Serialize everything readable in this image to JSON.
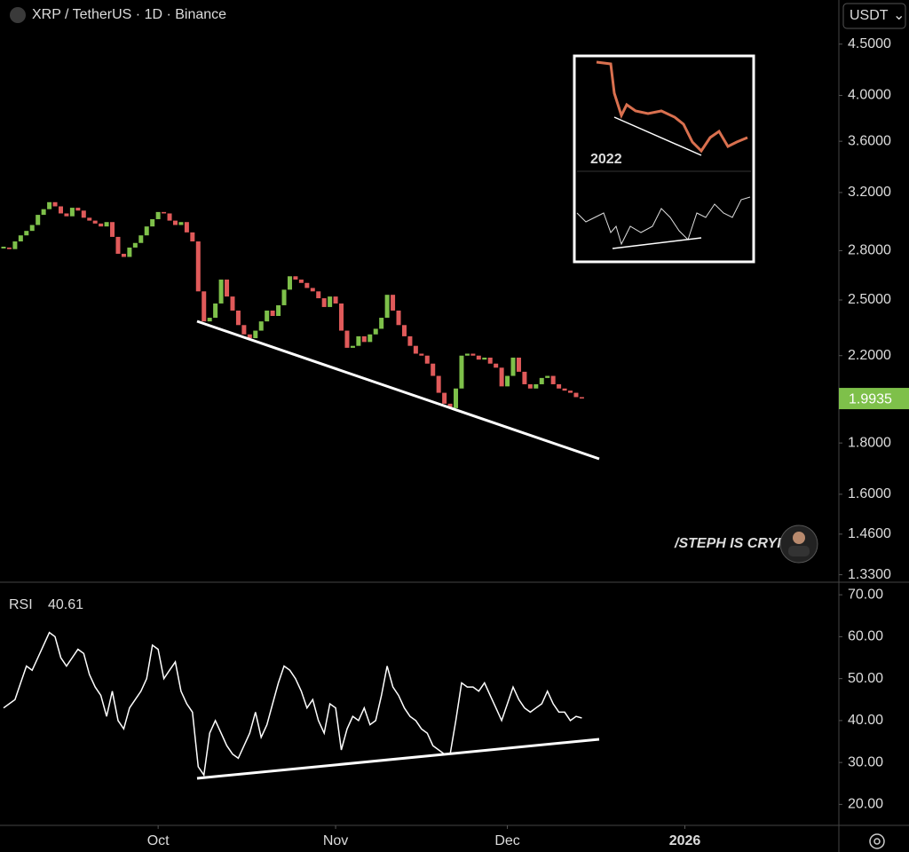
{
  "chart_data": [
    {
      "type": "candlestick",
      "title": "XRP / TetherUS · 1D · Binance",
      "currency": "USDT",
      "inset_label": "2022",
      "watermark": "/STEPH IS CRYPTO",
      "up_color": "#7ec04a",
      "down_color": "#e05a5a",
      "log_scale": true,
      "close": [
        2.82,
        2.81,
        2.86,
        2.9,
        2.93,
        2.97,
        3.04,
        3.08,
        3.13,
        3.1,
        3.05,
        3.03,
        3.09,
        3.07,
        3.02,
        3.0,
        2.98,
        2.96,
        2.99,
        2.89,
        2.78,
        2.76,
        2.82,
        2.85,
        2.9,
        2.96,
        3.01,
        3.06,
        3.05,
        3.0,
        2.97,
        2.99,
        2.92,
        2.86,
        2.55,
        2.38,
        2.4,
        2.48,
        2.62,
        2.52,
        2.44,
        2.36,
        2.31,
        2.29,
        2.33,
        2.38,
        2.44,
        2.41,
        2.47,
        2.56,
        2.64,
        2.62,
        2.6,
        2.57,
        2.55,
        2.51,
        2.46,
        2.52,
        2.48,
        2.33,
        2.24,
        2.25,
        2.3,
        2.27,
        2.31,
        2.34,
        2.4,
        2.53,
        2.44,
        2.36,
        2.3,
        2.25,
        2.21,
        2.2,
        2.16,
        2.1,
        2.02,
        1.97,
        1.95,
        2.04,
        2.2,
        2.21,
        2.2,
        2.18,
        2.19,
        2.16,
        2.14,
        2.05,
        2.1,
        2.19,
        2.12,
        2.06,
        2.04,
        2.06,
        2.09,
        2.1,
        2.06,
        2.04,
        2.03,
        2.02,
        2.0,
        1.9935
      ],
      "ylim": [
        1.31,
        4.98
      ],
      "yticks": [
        {
          "value": 4.5,
          "label": "4.5000"
        },
        {
          "value": 4.0,
          "label": "4.0000"
        },
        {
          "value": 3.6,
          "label": "3.6000"
        },
        {
          "value": 3.2,
          "label": "3.2000"
        },
        {
          "value": 2.8,
          "label": "2.8000"
        },
        {
          "value": 2.5,
          "label": "2.5000"
        },
        {
          "value": 2.2,
          "label": "2.2000"
        },
        {
          "value": 1.8,
          "label": "1.8000"
        },
        {
          "value": 1.6,
          "label": "1.6000"
        },
        {
          "value": 1.46,
          "label": "1.4600"
        },
        {
          "value": 1.33,
          "label": "1.3300"
        }
      ],
      "xlim": [
        -0.62,
        145.9
      ],
      "xticks": [
        {
          "value": 27,
          "label": "Oct"
        },
        {
          "value": 58,
          "label": "Nov"
        },
        {
          "value": 88,
          "label": "Dec"
        },
        {
          "value": 119,
          "label": "2026"
        }
      ]
    },
    {
      "type": "line",
      "title": "RSI",
      "color": "#ffffff",
      "values": [
        43,
        44,
        45,
        49,
        53,
        52,
        55,
        58,
        61,
        60,
        55,
        53,
        55,
        57,
        56,
        51,
        48,
        46,
        41,
        47,
        40,
        38,
        43,
        45,
        47,
        50,
        58,
        57,
        50,
        52,
        54,
        47,
        44,
        42,
        29,
        27,
        37,
        40,
        37,
        34,
        32,
        31,
        34,
        37,
        42,
        36,
        39,
        44,
        49,
        53,
        52,
        50,
        47,
        43,
        45,
        40,
        37,
        44,
        43,
        33,
        38,
        41,
        40,
        43,
        39,
        40,
        46,
        53,
        48,
        46,
        43,
        41,
        40,
        38,
        37,
        34,
        33,
        32,
        32,
        40,
        49,
        48,
        48,
        47,
        49,
        46,
        43,
        40,
        44,
        48,
        45,
        43,
        42,
        43,
        44,
        47,
        44,
        42,
        42,
        40,
        41,
        40.61
      ],
      "ylim": [
        15,
        73
      ],
      "yticks": [
        {
          "value": 70,
          "label": "70.00"
        },
        {
          "value": 60,
          "label": "60.00"
        },
        {
          "value": 50,
          "label": "50.00"
        },
        {
          "value": 40,
          "label": "40.00"
        },
        {
          "value": 30,
          "label": "30.00"
        },
        {
          "value": 20,
          "label": "20.00"
        }
      ]
    }
  ]
}
